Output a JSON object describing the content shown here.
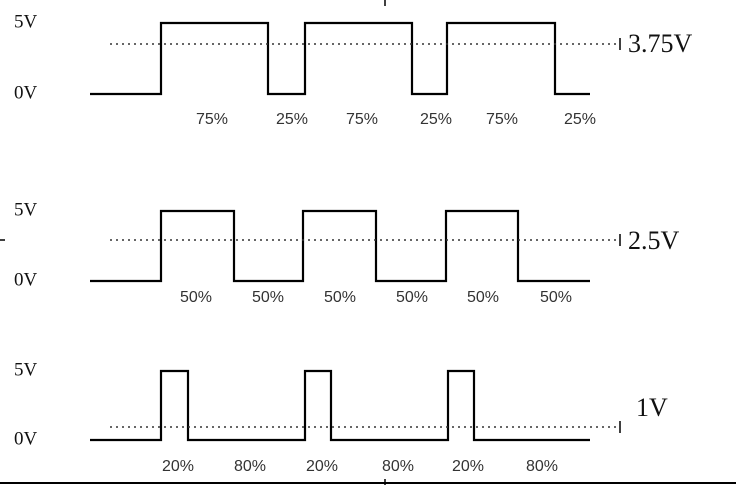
{
  "panels": [
    {
      "high": "5V",
      "low": "0V",
      "average": "3.75V",
      "duty_labels": [
        "75%",
        "25%",
        "75%",
        "25%",
        "75%",
        "25%"
      ]
    },
    {
      "high": "5V",
      "low": "0V",
      "average": "2.5V",
      "duty_labels": [
        "50%",
        "50%",
        "50%",
        "50%",
        "50%",
        "50%"
      ]
    },
    {
      "high": "5V",
      "low": "0V",
      "average": "1V",
      "duty_labels": [
        "20%",
        "80%",
        "20%",
        "80%",
        "20%",
        "80%"
      ]
    }
  ]
}
